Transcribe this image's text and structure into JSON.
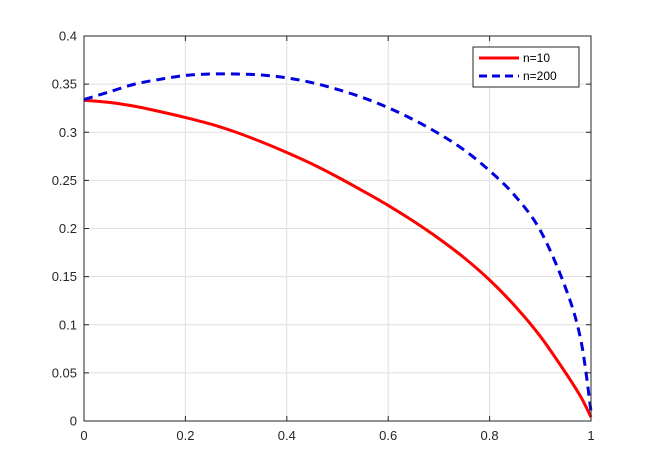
{
  "chart_data": {
    "type": "line",
    "title": "",
    "xlabel": "",
    "ylabel": "",
    "xlim": [
      0,
      1
    ],
    "ylim": [
      0,
      0.4
    ],
    "grid": true,
    "legend_placement": "top-right",
    "x_ticks": [
      "0",
      "0.2",
      "0.4",
      "0.6",
      "0.8",
      "1"
    ],
    "y_ticks": [
      "0",
      "0.05",
      "0.1",
      "0.15",
      "0.2",
      "0.25",
      "0.3",
      "0.35",
      "0.4"
    ],
    "series": [
      {
        "name": "n=10",
        "color": "#ff0000",
        "style": "solid",
        "x": [
          0,
          0.05,
          0.1,
          0.15,
          0.2,
          0.25,
          0.3,
          0.35,
          0.4,
          0.45,
          0.5,
          0.55,
          0.6,
          0.65,
          0.7,
          0.75,
          0.8,
          0.85,
          0.9,
          0.95,
          0.98,
          1
        ],
        "y": [
          0.3333,
          0.331,
          0.327,
          0.3214,
          0.3153,
          0.3085,
          0.3,
          0.29,
          0.279,
          0.267,
          0.2535,
          0.239,
          0.224,
          0.2075,
          0.1895,
          0.1695,
          0.1465,
          0.1195,
          0.088,
          0.05,
          0.025,
          0.004
        ]
      },
      {
        "name": "n=200",
        "color": "#0000e0",
        "style": "dashed",
        "x": [
          0,
          0.05,
          0.1,
          0.15,
          0.2,
          0.25,
          0.3,
          0.35,
          0.4,
          0.45,
          0.5,
          0.55,
          0.6,
          0.65,
          0.7,
          0.75,
          0.8,
          0.85,
          0.9,
          0.95,
          0.98,
          1
        ],
        "y": [
          0.334,
          0.342,
          0.35,
          0.355,
          0.359,
          0.3605,
          0.3605,
          0.3595,
          0.3565,
          0.3515,
          0.3445,
          0.336,
          0.3255,
          0.313,
          0.2985,
          0.2815,
          0.26,
          0.234,
          0.198,
          0.138,
          0.084,
          0.01
        ]
      }
    ]
  }
}
